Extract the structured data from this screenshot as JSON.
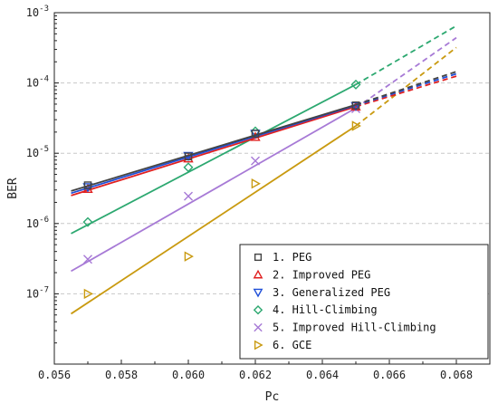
{
  "chart_data": {
    "type": "line",
    "xlabel": "Pc",
    "ylabel": "BER",
    "xlim": [
      0.056,
      0.069
    ],
    "ylim": [
      1e-08,
      0.001
    ],
    "yscale": "log",
    "x_ticks": [
      0.056,
      0.058,
      0.06,
      0.062,
      0.064,
      0.066,
      0.068
    ],
    "x_tick_labels": [
      "0.056",
      "0.058",
      "0.060",
      "0.062",
      "0.064",
      "0.066",
      "0.068"
    ],
    "y_ticks": [
      1e-07,
      1e-06,
      1e-05,
      0.0001,
      0.001
    ],
    "y_tick_labels": [
      {
        "base": "10",
        "exp": "-7"
      },
      {
        "base": "10",
        "exp": "-6"
      },
      {
        "base": "10",
        "exp": "-5"
      },
      {
        "base": "10",
        "exp": "-4"
      },
      {
        "base": "10",
        "exp": "-3"
      }
    ],
    "grid": "horizontal dashed at decades",
    "legend_position": "bottom-right",
    "series": [
      {
        "name": "1. PEG",
        "color": "#444444",
        "marker": "square",
        "points": [
          [
            0.057,
            3.5e-06
          ],
          [
            0.06,
            9e-06
          ],
          [
            0.062,
            1.9e-05
          ],
          [
            0.065,
            4.8e-05
          ]
        ],
        "fit_solid": [
          [
            0.0565,
            2.9e-06
          ],
          [
            0.065,
            4.9e-05
          ]
        ],
        "fit_dashed": [
          [
            0.065,
            4.9e-05
          ],
          [
            0.068,
            0.000145
          ]
        ]
      },
      {
        "name": "2. Improved PEG",
        "color": "#e02020",
        "marker": "triangle-up",
        "points": [
          [
            0.057,
            3.1e-06
          ],
          [
            0.06,
            8.4e-06
          ],
          [
            0.062,
            1.7e-05
          ],
          [
            0.065,
            4.6e-05
          ]
        ],
        "fit_solid": [
          [
            0.0565,
            2.5e-06
          ],
          [
            0.065,
            4.6e-05
          ]
        ],
        "fit_dashed": [
          [
            0.065,
            4.6e-05
          ],
          [
            0.068,
            0.000125
          ]
        ]
      },
      {
        "name": "3. Generalized PEG",
        "color": "#1f4fd8",
        "marker": "triangle-down",
        "points": [
          [
            0.057,
            3.3e-06
          ],
          [
            0.06,
            9.2e-06
          ],
          [
            0.062,
            1.9e-05
          ],
          [
            0.065,
            4.7e-05
          ]
        ],
        "fit_solid": [
          [
            0.0565,
            2.7e-06
          ],
          [
            0.065,
            4.8e-05
          ]
        ],
        "fit_dashed": [
          [
            0.065,
            4.8e-05
          ],
          [
            0.068,
            0.000135
          ]
        ]
      },
      {
        "name": "4. Hill-Climbing",
        "color": "#2ca870",
        "marker": "diamond",
        "points": [
          [
            0.057,
            1.05e-06
          ],
          [
            0.06,
            6.3e-06
          ],
          [
            0.062,
            2.05e-05
          ],
          [
            0.065,
            9.5e-05
          ]
        ],
        "fit_solid": [
          [
            0.0565,
            7.2e-07
          ],
          [
            0.065,
            9.5e-05
          ]
        ],
        "fit_dashed": [
          [
            0.065,
            9.5e-05
          ],
          [
            0.068,
            0.00065
          ]
        ]
      },
      {
        "name": "5. Improved Hill-Climbing",
        "color": "#a77ad6",
        "marker": "cross",
        "points": [
          [
            0.057,
            3.1e-07
          ],
          [
            0.06,
            2.45e-06
          ],
          [
            0.062,
            7.8e-06
          ],
          [
            0.065,
            4.3e-05
          ]
        ],
        "fit_solid": [
          [
            0.0565,
            2.1e-07
          ],
          [
            0.065,
            4.4e-05
          ]
        ],
        "fit_dashed": [
          [
            0.065,
            4.4e-05
          ],
          [
            0.068,
            0.00044
          ]
        ]
      },
      {
        "name": "6. GCE",
        "color": "#c99a10",
        "marker": "triangle-right",
        "points": [
          [
            0.057,
            1e-07
          ],
          [
            0.06,
            3.4e-07
          ],
          [
            0.062,
            3.7e-06
          ],
          [
            0.065,
            2.45e-05
          ]
        ],
        "fit_solid": [
          [
            0.0565,
            5.2e-08
          ],
          [
            0.065,
            2.45e-05
          ]
        ],
        "fit_dashed": [
          [
            0.065,
            2.45e-05
          ],
          [
            0.068,
            0.00032
          ]
        ]
      }
    ]
  }
}
